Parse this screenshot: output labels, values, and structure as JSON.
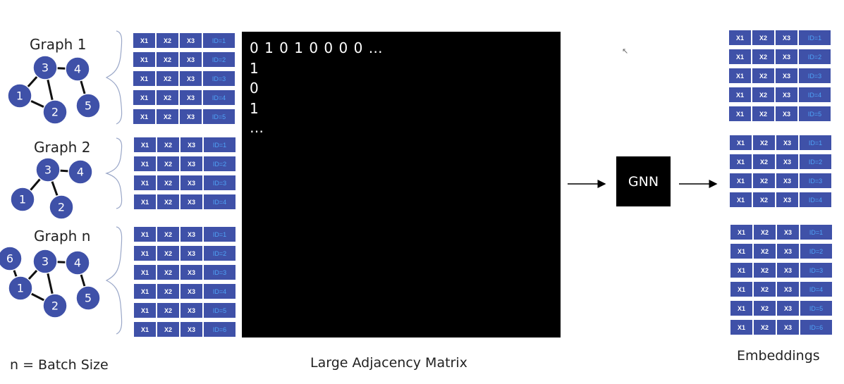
{
  "graphs": [
    {
      "title": "Graph 1",
      "nodes": [
        {
          "label": "3"
        },
        {
          "label": "4"
        },
        {
          "label": "1"
        },
        {
          "label": "2"
        },
        {
          "label": "5"
        }
      ],
      "features": [
        {
          "x1": "X1",
          "x2": "X2",
          "x3": "X3",
          "id": "ID=1"
        },
        {
          "x1": "X1",
          "x2": "X2",
          "x3": "X3",
          "id": "ID=2"
        },
        {
          "x1": "X1",
          "x2": "X2",
          "x3": "X3",
          "id": "ID=3"
        },
        {
          "x1": "X1",
          "x2": "X2",
          "x3": "X3",
          "id": "ID=4"
        },
        {
          "x1": "X1",
          "x2": "X2",
          "x3": "X3",
          "id": "ID=5"
        }
      ]
    },
    {
      "title": "Graph 2",
      "nodes": [
        {
          "label": "3"
        },
        {
          "label": "4"
        },
        {
          "label": "1"
        },
        {
          "label": "2"
        }
      ],
      "features": [
        {
          "x1": "X1",
          "x2": "X2",
          "x3": "X3",
          "id": "ID=1"
        },
        {
          "x1": "X1",
          "x2": "X2",
          "x3": "X3",
          "id": "ID=2"
        },
        {
          "x1": "X1",
          "x2": "X2",
          "x3": "X3",
          "id": "ID=3"
        },
        {
          "x1": "X1",
          "x2": "X2",
          "x3": "X3",
          "id": "ID=4"
        }
      ]
    },
    {
      "title": "Graph n",
      "nodes": [
        {
          "label": "6"
        },
        {
          "label": "3"
        },
        {
          "label": "4"
        },
        {
          "label": "1"
        },
        {
          "label": "2"
        },
        {
          "label": "5"
        }
      ],
      "features": [
        {
          "x1": "X1",
          "x2": "X2",
          "x3": "X3",
          "id": "ID=1"
        },
        {
          "x1": "X1",
          "x2": "X2",
          "x3": "X3",
          "id": "ID=2"
        },
        {
          "x1": "X1",
          "x2": "X2",
          "x3": "X3",
          "id": "ID=3"
        },
        {
          "x1": "X1",
          "x2": "X2",
          "x3": "X3",
          "id": "ID=4"
        },
        {
          "x1": "X1",
          "x2": "X2",
          "x3": "X3",
          "id": "ID=5"
        },
        {
          "x1": "X1",
          "x2": "X2",
          "x3": "X3",
          "id": "ID=6"
        }
      ]
    }
  ],
  "matrix": {
    "lines": [
      "0 1 0 1 0 0 0 0 …",
      "1",
      "0",
      "1",
      "…"
    ],
    "caption": "Large Adjacency Matrix"
  },
  "gnn_label": "GNN",
  "embeddings": {
    "caption": "Embeddings",
    "groups": [
      [
        {
          "x1": "X1",
          "x2": "X2",
          "x3": "X3",
          "id": "ID=1"
        },
        {
          "x1": "X1",
          "x2": "X2",
          "x3": "X3",
          "id": "ID=2"
        },
        {
          "x1": "X1",
          "x2": "X2",
          "x3": "X3",
          "id": "ID=3"
        },
        {
          "x1": "X1",
          "x2": "X2",
          "x3": "X3",
          "id": "ID=4"
        },
        {
          "x1": "X1",
          "x2": "X2",
          "x3": "X3",
          "id": "ID=5"
        }
      ],
      [
        {
          "x1": "X1",
          "x2": "X2",
          "x3": "X3",
          "id": "ID=1"
        },
        {
          "x1": "X1",
          "x2": "X2",
          "x3": "X3",
          "id": "ID=2"
        },
        {
          "x1": "X1",
          "x2": "X2",
          "x3": "X3",
          "id": "ID=3"
        },
        {
          "x1": "X1",
          "x2": "X2",
          "x3": "X3",
          "id": "ID=4"
        }
      ],
      [
        {
          "x1": "X1",
          "x2": "X2",
          "x3": "X3",
          "id": "ID=1"
        },
        {
          "x1": "X1",
          "x2": "X2",
          "x3": "X3",
          "id": "ID=2"
        },
        {
          "x1": "X1",
          "x2": "X2",
          "x3": "X3",
          "id": "ID=3"
        },
        {
          "x1": "X1",
          "x2": "X2",
          "x3": "X3",
          "id": "ID=4"
        },
        {
          "x1": "X1",
          "x2": "X2",
          "x3": "X3",
          "id": "ID=5"
        },
        {
          "x1": "X1",
          "x2": "X2",
          "x3": "X3",
          "id": "ID=6"
        }
      ]
    ]
  },
  "batch_note": "n = Batch Size",
  "colors": {
    "node": "#3F51A8",
    "cell": "#3F51A8",
    "id_text": "#4FA3F7",
    "matrix_bg": "#000000"
  }
}
